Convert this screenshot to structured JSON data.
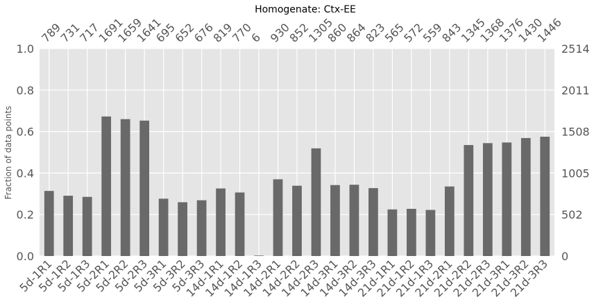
{
  "chart_data": {
    "type": "bar",
    "title": "Homogenate: Ctx-EE",
    "ylabel": "Fraction of data points",
    "xlabel": "",
    "ylim": [
      0,
      1.0
    ],
    "y_ticks": [
      "0.0",
      "0.2",
      "0.4",
      "0.6",
      "0.8",
      "1.0"
    ],
    "right_axis_ticks": [
      "0",
      "502",
      "1005",
      "1508",
      "2011",
      "2514"
    ],
    "grid": true,
    "bar_color": "#696969",
    "background_color": "#e5e5e5",
    "categories": [
      "5d-1R1",
      "5d-1R2",
      "5d-1R3",
      "5d-2R1",
      "5d-2R2",
      "5d-2R3",
      "5d-3R1",
      "5d-3R2",
      "5d-3R3",
      "14d-1R1",
      "14d-1R2",
      "14d-1R3",
      "14d-2R1",
      "14d-2R2",
      "14d-2R3",
      "14d-3R1",
      "14d-3R2",
      "14d-3R3",
      "21d-1R1",
      "21d-1R2",
      "21d-1R3",
      "21d-2R1",
      "21d-2R2",
      "21d-2R3",
      "21d-3R1",
      "21d-3R2",
      "21d-3R3"
    ],
    "counts": [
      789,
      731,
      717,
      1691,
      1659,
      1641,
      695,
      652,
      676,
      819,
      770,
      6,
      930,
      852,
      1305,
      860,
      864,
      823,
      565,
      572,
      559,
      843,
      1345,
      1368,
      1376,
      1430,
      1446
    ],
    "max_count": 2514
  }
}
